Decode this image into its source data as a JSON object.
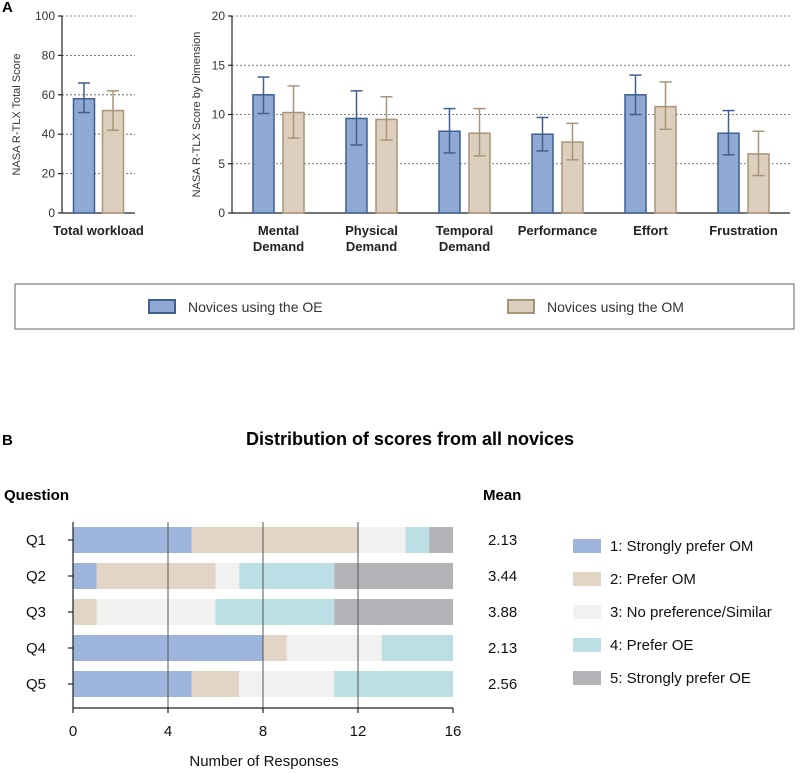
{
  "chart_data": [
    {
      "panel": "A",
      "type": "bar",
      "ylabel": "NASA R-TLX Total Score",
      "ylim": [
        0,
        100
      ],
      "yticks": [
        0,
        20,
        40,
        60,
        80,
        100
      ],
      "categories": [
        "Total workload"
      ],
      "series": [
        {
          "name": "Novices using the OE",
          "color": "#8fa8d4",
          "edge": "#3f5f8f",
          "values": [
            58
          ],
          "err": [
            [
              51,
              66
            ]
          ]
        },
        {
          "name": "Novices using the OM",
          "color": "#ddcfbd",
          "edge": "#a89478",
          "values": [
            52
          ],
          "err": [
            [
              42,
              62
            ]
          ]
        }
      ]
    },
    {
      "panel": "A",
      "type": "bar",
      "ylabel": "NASA R-TLX Score by Dimension",
      "ylim": [
        0,
        20
      ],
      "yticks": [
        0,
        5,
        10,
        15,
        20
      ],
      "categories": [
        [
          "Mental",
          "Demand"
        ],
        [
          "Physical",
          "Demand"
        ],
        [
          "Temporal",
          "Demand"
        ],
        [
          "Performance"
        ],
        [
          "Effort"
        ],
        [
          "Frustration"
        ]
      ],
      "series": [
        {
          "name": "Novices using the OE",
          "color": "#8fa8d4",
          "edge": "#3f5f8f",
          "values": [
            12.0,
            9.6,
            8.3,
            8.0,
            12.0,
            8.1
          ],
          "err": [
            [
              10.1,
              13.8
            ],
            [
              6.9,
              12.4
            ],
            [
              6.1,
              10.6
            ],
            [
              6.3,
              9.7
            ],
            [
              10.0,
              14.0
            ],
            [
              5.9,
              10.4
            ]
          ]
        },
        {
          "name": "Novices using the OM",
          "color": "#ddcfbd",
          "edge": "#a89478",
          "values": [
            10.2,
            9.5,
            8.1,
            7.2,
            10.8,
            6.0
          ],
          "err": [
            [
              7.6,
              12.9
            ],
            [
              7.4,
              11.8
            ],
            [
              5.8,
              10.6
            ],
            [
              5.4,
              9.1
            ],
            [
              8.5,
              13.3
            ],
            [
              3.8,
              8.3
            ]
          ]
        }
      ]
    },
    {
      "panel": "B",
      "type": "bar",
      "orientation": "horizontal-stacked",
      "title": "Distribution of scores from all novices",
      "row_header": "Question",
      "mean_header": "Mean",
      "xlabel": "Number of Responses",
      "xlim": [
        0,
        16
      ],
      "xticks": [
        0,
        4,
        8,
        12,
        16
      ],
      "categories": [
        "Q1",
        "Q2",
        "Q3",
        "Q4",
        "Q5"
      ],
      "means": [
        "2.13",
        "3.44",
        "3.88",
        "2.13",
        "2.56"
      ],
      "series": [
        {
          "name": "1: Strongly prefer OM",
          "color": "#9db4dc",
          "values": [
            5,
            1,
            0,
            8,
            5
          ]
        },
        {
          "name": "2: Prefer OM",
          "color": "#e2d5c5",
          "values": [
            7,
            5,
            1,
            1,
            2
          ]
        },
        {
          "name": "3: No preference/Similar",
          "color": "#f1f1ef",
          "values": [
            2,
            1,
            5,
            4,
            4
          ]
        },
        {
          "name": "4: Prefer OE",
          "color": "#bcdfe6",
          "values": [
            1,
            4,
            5,
            3,
            5
          ]
        },
        {
          "name": "5: Strongly prefer OE",
          "color": "#b1b3b6",
          "values": [
            1,
            5,
            5,
            0,
            0
          ]
        }
      ]
    }
  ],
  "labels": {
    "panel_a": "A",
    "panel_b": "B",
    "legend_oe": "Novices using the OE",
    "legend_om": "Novices using the OM"
  }
}
